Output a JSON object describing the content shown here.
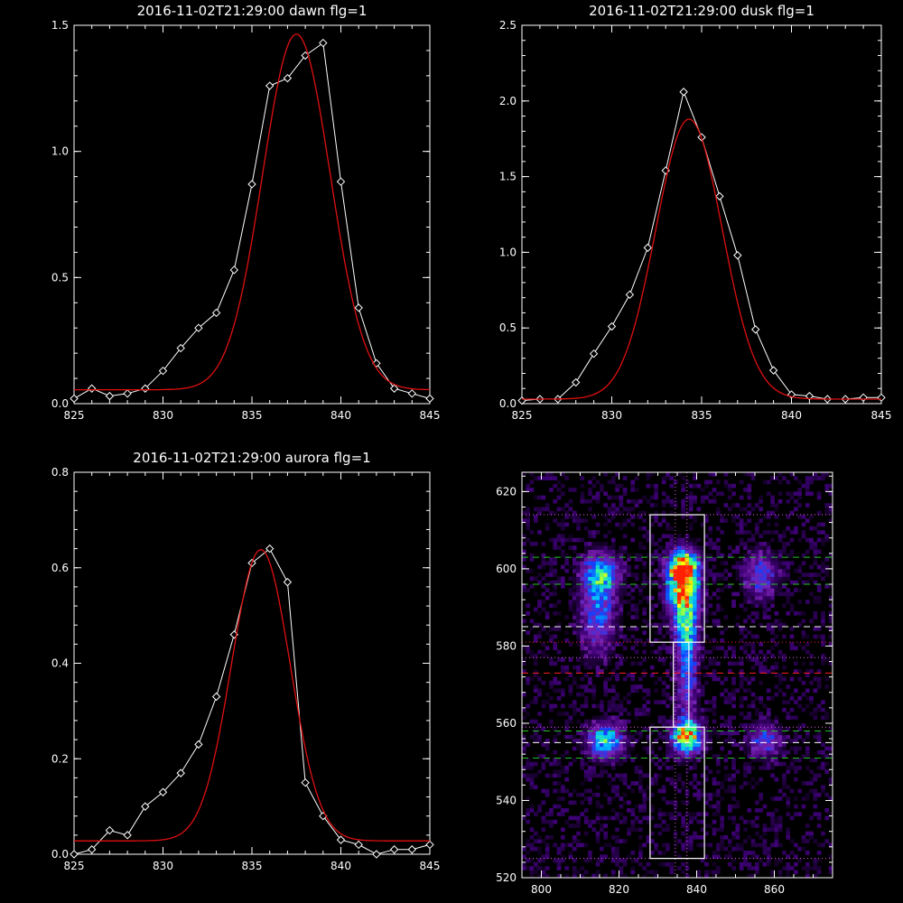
{
  "chart_data": [
    {
      "type": "line",
      "title": "2016-11-02T21:29:00 dawn flg=1",
      "xlim": [
        825,
        845
      ],
      "ylim": [
        0,
        1.5
      ],
      "xticks": [
        "825",
        "830",
        "835",
        "840",
        "845"
      ],
      "yticks": [
        "0.0",
        "0.5",
        "1.0",
        "1.5"
      ],
      "series": [
        {
          "style": "data",
          "color": "#ffffff",
          "x": [
            825,
            826,
            827,
            828,
            829,
            830,
            831,
            832,
            833,
            834,
            835,
            836,
            837,
            838,
            839,
            840,
            841,
            842,
            843,
            844,
            845
          ],
          "y": [
            0.02,
            0.06,
            0.03,
            0.04,
            0.06,
            0.13,
            0.22,
            0.3,
            0.36,
            0.53,
            0.87,
            1.26,
            1.29,
            1.38,
            1.43,
            0.88,
            0.38,
            0.16,
            0.06,
            0.04,
            0.02
          ]
        },
        {
          "style": "fit",
          "color": "#e01010",
          "model": "gaussian",
          "amp": 1.41,
          "center": 837.5,
          "sigma": 1.9,
          "baseline": 0.055
        }
      ]
    },
    {
      "type": "line",
      "title": "2016-11-02T21:29:00 dusk flg=1",
      "xlim": [
        825,
        845
      ],
      "ylim": [
        0,
        2.5
      ],
      "xticks": [
        "825",
        "830",
        "835",
        "840",
        "845"
      ],
      "yticks": [
        "0.0",
        "0.5",
        "1.0",
        "1.5",
        "2.0",
        "2.5"
      ],
      "series": [
        {
          "style": "data",
          "color": "#ffffff",
          "x": [
            825,
            826,
            827,
            828,
            829,
            830,
            831,
            832,
            833,
            834,
            835,
            836,
            837,
            838,
            839,
            840,
            841,
            842,
            843,
            844,
            845
          ],
          "y": [
            0.02,
            0.03,
            0.03,
            0.14,
            0.33,
            0.51,
            0.72,
            1.03,
            1.54,
            2.06,
            1.76,
            1.37,
            0.98,
            0.49,
            0.22,
            0.06,
            0.05,
            0.03,
            0.03,
            0.04,
            0.04
          ]
        },
        {
          "style": "fit",
          "color": "#e01010",
          "model": "gaussian",
          "amp": 1.85,
          "center": 834.3,
          "sigma": 1.85,
          "baseline": 0.03
        }
      ]
    },
    {
      "type": "line",
      "title": "2016-11-02T21:29:00 aurora flg=1",
      "xlim": [
        825,
        845
      ],
      "ylim": [
        0,
        0.8
      ],
      "xticks": [
        "825",
        "830",
        "835",
        "840",
        "845"
      ],
      "yticks": [
        "0.0",
        "0.2",
        "0.4",
        "0.6",
        "0.8"
      ],
      "series": [
        {
          "style": "data",
          "color": "#ffffff",
          "x": [
            825,
            826,
            827,
            828,
            829,
            830,
            831,
            832,
            833,
            834,
            835,
            836,
            837,
            838,
            839,
            840,
            841,
            842,
            843,
            844,
            845
          ],
          "y": [
            0.0,
            0.01,
            0.05,
            0.04,
            0.1,
            0.13,
            0.17,
            0.23,
            0.33,
            0.46,
            0.61,
            0.64,
            0.57,
            0.15,
            0.08,
            0.03,
            0.02,
            0.0,
            0.01,
            0.01,
            0.02
          ]
        },
        {
          "style": "fit",
          "color": "#e01010",
          "model": "gaussian",
          "amp": 0.61,
          "center": 835.5,
          "sigma": 1.65,
          "baseline": 0.028
        }
      ]
    },
    {
      "type": "heatmap",
      "title": "",
      "xlim": [
        795,
        875
      ],
      "ylim": [
        520,
        625
      ],
      "xticks": [
        "800",
        "820",
        "840",
        "860"
      ],
      "yticks": [
        "520",
        "540",
        "560",
        "580",
        "600",
        "620"
      ],
      "colorscale": [
        "#000000",
        "#3a0070",
        "#7a20b0",
        "#1040ff",
        "#00c0ff",
        "#40ff80",
        "#ffff00",
        "#ff2000"
      ],
      "blobs": [
        {
          "x": 815,
          "y": 598,
          "sx": 3.0,
          "sy": 3.5,
          "amp": 0.55
        },
        {
          "x": 814,
          "y": 588,
          "sx": 3.0,
          "sy": 7,
          "amp": 0.38
        },
        {
          "x": 816,
          "y": 555,
          "sx": 3.0,
          "sy": 3,
          "amp": 0.62
        },
        {
          "x": 836,
          "y": 600,
          "sx": 2.6,
          "sy": 3.0,
          "amp": 1.0
        },
        {
          "x": 836,
          "y": 593,
          "sx": 2.6,
          "sy": 4.5,
          "amp": 0.85
        },
        {
          "x": 837,
          "y": 583,
          "sx": 2.0,
          "sy": 5,
          "amp": 0.55
        },
        {
          "x": 837,
          "y": 570,
          "sx": 1.8,
          "sy": 7,
          "amp": 0.35
        },
        {
          "x": 837,
          "y": 556,
          "sx": 2.5,
          "sy": 2.8,
          "amp": 0.95
        },
        {
          "x": 856,
          "y": 598,
          "sx": 3.0,
          "sy": 4,
          "amp": 0.35
        },
        {
          "x": 857,
          "y": 555,
          "sx": 2.8,
          "sy": 3,
          "amp": 0.35
        }
      ],
      "boxes": [
        {
          "x0": 828,
          "x1": 842,
          "y0": 525,
          "y1": 559
        },
        {
          "x0": 834,
          "x1": 838,
          "y0": 559,
          "y1": 581
        },
        {
          "x0": 828,
          "x1": 842,
          "y0": 581,
          "y1": 614
        }
      ],
      "hlines": [
        {
          "y": 614,
          "color": "#e060e0",
          "style": "dotted"
        },
        {
          "y": 603,
          "color": "#20c020",
          "style": "dashed"
        },
        {
          "y": 596,
          "color": "#20c020",
          "style": "dashed"
        },
        {
          "y": 585,
          "color": "#ffffff",
          "style": "dashed"
        },
        {
          "y": 581,
          "color": "#ff2020",
          "style": "dotted"
        },
        {
          "y": 577,
          "color": "#e060e0",
          "style": "dotted"
        },
        {
          "y": 573,
          "color": "#ff2020",
          "style": "dashed"
        },
        {
          "y": 559,
          "color": "#e060e0",
          "style": "dotted"
        },
        {
          "y": 558,
          "color": "#20c020",
          "style": "dashed"
        },
        {
          "y": 555,
          "color": "#ffffff",
          "style": "dashed"
        },
        {
          "y": 551,
          "color": "#20c020",
          "style": "dashed"
        },
        {
          "y": 525,
          "color": "#e060e0",
          "style": "dotted"
        }
      ],
      "vlines": [
        {
          "x": 834.5,
          "color": "#e060e0",
          "style": "dotted"
        },
        {
          "x": 837.5,
          "color": "#e060e0",
          "style": "dotted"
        }
      ]
    }
  ]
}
